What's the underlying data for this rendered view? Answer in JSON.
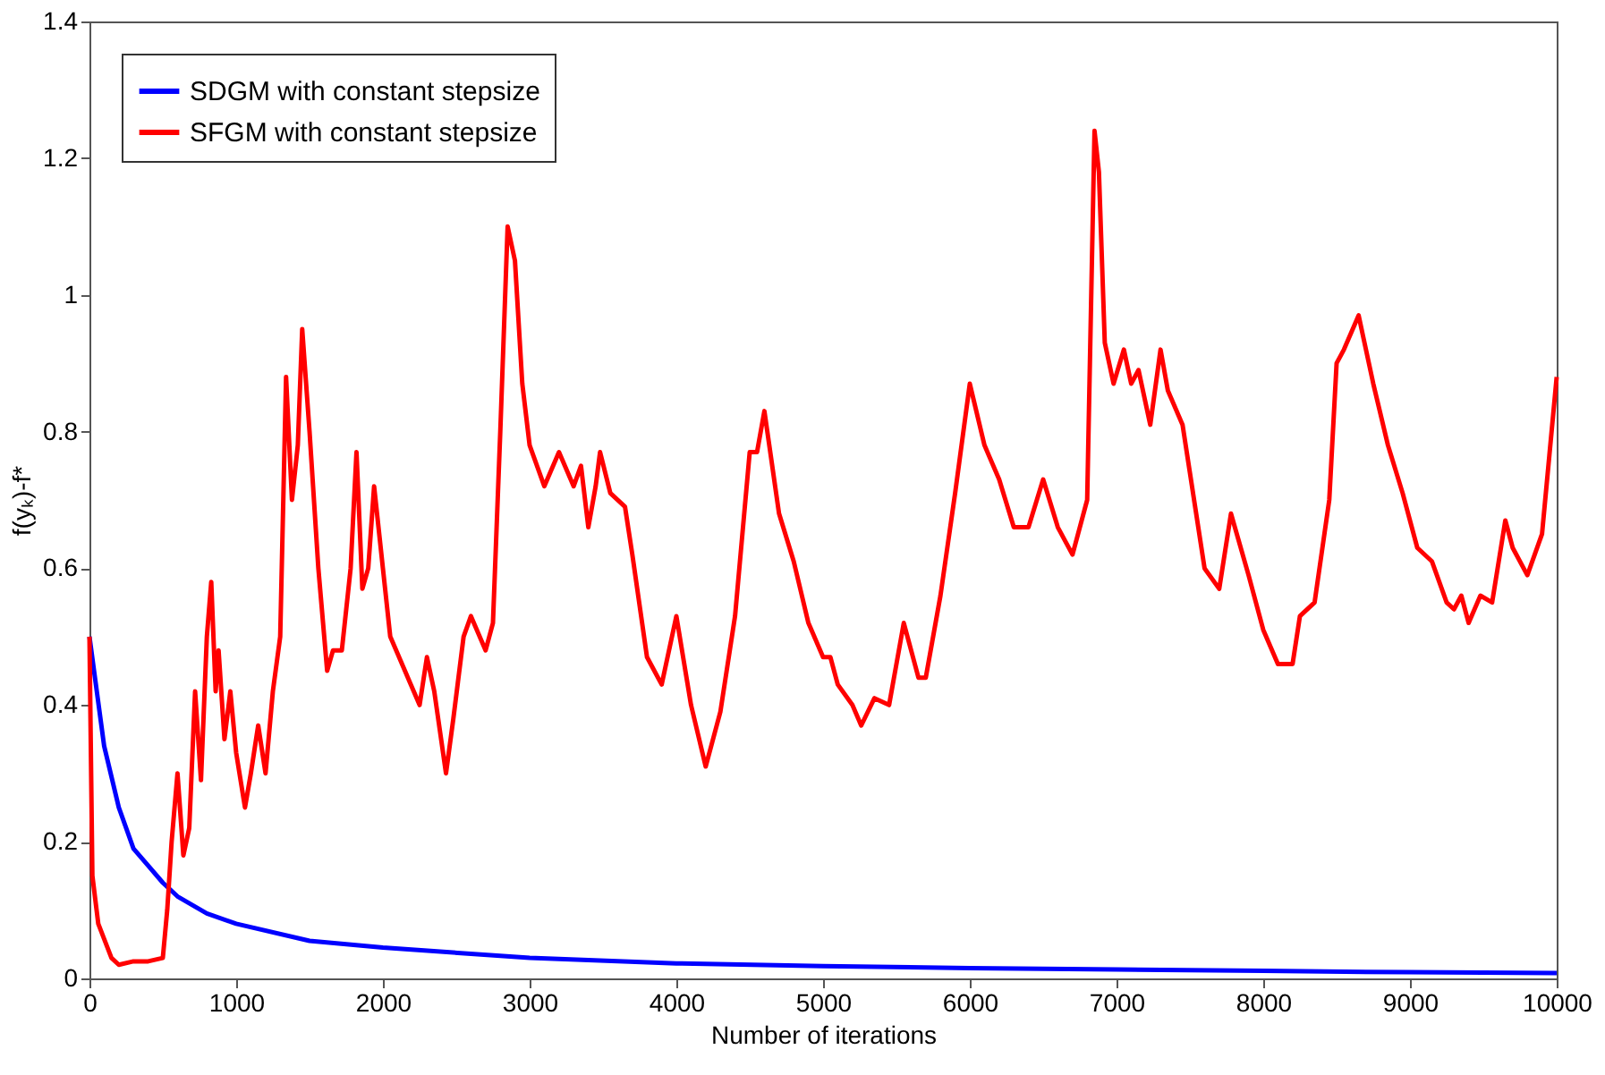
{
  "chart_data": {
    "type": "line",
    "xlabel": "Number of iterations",
    "ylabel": "f(yₖ)-f*",
    "xlim": [
      0,
      10000
    ],
    "xticks": [
      0,
      1000,
      2000,
      3000,
      4000,
      5000,
      6000,
      7000,
      8000,
      9000,
      10000
    ],
    "ylim": [
      0,
      1.4
    ],
    "yticks": [
      0,
      0.2,
      0.4,
      0.6,
      0.8,
      1,
      1.2,
      1.4
    ],
    "grid": false,
    "legend": "top left",
    "marker": "none",
    "line_style": "solid",
    "series": [
      {
        "name": "SDGM with constant stepsize",
        "color": "#0000ff",
        "x": [
          0,
          50,
          100,
          200,
          300,
          400,
          500,
          600,
          800,
          1000,
          1500,
          2000,
          3000,
          4000,
          5000,
          6000,
          7000,
          8000,
          9000,
          10000
        ],
        "values": [
          0.5,
          0.42,
          0.34,
          0.25,
          0.19,
          0.165,
          0.14,
          0.12,
          0.095,
          0.08,
          0.055,
          0.045,
          0.03,
          0.022,
          0.018,
          0.015,
          0.013,
          0.011,
          0.009,
          0.008
        ]
      },
      {
        "name": "SFGM with constant stepsize",
        "color": "#ff0000",
        "x": [
          0,
          20,
          60,
          150,
          200,
          300,
          400,
          500,
          530,
          560,
          600,
          640,
          680,
          720,
          760,
          800,
          830,
          860,
          880,
          920,
          960,
          1000,
          1060,
          1100,
          1150,
          1200,
          1250,
          1300,
          1340,
          1380,
          1420,
          1450,
          1500,
          1560,
          1620,
          1660,
          1720,
          1780,
          1820,
          1860,
          1900,
          1940,
          2000,
          2050,
          2150,
          2250,
          2300,
          2350,
          2430,
          2480,
          2550,
          2600,
          2700,
          2750,
          2800,
          2850,
          2900,
          2950,
          3000,
          3100,
          3200,
          3300,
          3350,
          3400,
          3450,
          3480,
          3550,
          3650,
          3700,
          3800,
          3900,
          4000,
          4100,
          4200,
          4300,
          4400,
          4500,
          4550,
          4600,
          4700,
          4800,
          4900,
          5000,
          5050,
          5100,
          5200,
          5260,
          5350,
          5450,
          5550,
          5650,
          5700,
          5800,
          5900,
          6000,
          6100,
          6200,
          6300,
          6400,
          6500,
          6600,
          6700,
          6800,
          6850,
          6880,
          6920,
          6980,
          7050,
          7100,
          7150,
          7230,
          7300,
          7350,
          7450,
          7500,
          7600,
          7700,
          7780,
          7900,
          8000,
          8100,
          8200,
          8250,
          8350,
          8450,
          8500,
          8550,
          8650,
          8750,
          8850,
          8950,
          9050,
          9150,
          9250,
          9300,
          9350,
          9400,
          9480,
          9560,
          9650,
          9700,
          9800,
          9900,
          10000
        ],
        "values": [
          0.5,
          0.15,
          0.08,
          0.03,
          0.02,
          0.025,
          0.025,
          0.03,
          0.1,
          0.2,
          0.3,
          0.18,
          0.22,
          0.42,
          0.29,
          0.5,
          0.58,
          0.42,
          0.48,
          0.35,
          0.42,
          0.33,
          0.25,
          0.3,
          0.37,
          0.3,
          0.42,
          0.5,
          0.88,
          0.7,
          0.78,
          0.95,
          0.8,
          0.6,
          0.45,
          0.48,
          0.48,
          0.6,
          0.77,
          0.57,
          0.6,
          0.72,
          0.6,
          0.5,
          0.45,
          0.4,
          0.47,
          0.42,
          0.3,
          0.38,
          0.5,
          0.53,
          0.48,
          0.52,
          0.8,
          1.1,
          1.05,
          0.87,
          0.78,
          0.72,
          0.77,
          0.72,
          0.75,
          0.66,
          0.72,
          0.77,
          0.71,
          0.69,
          0.62,
          0.47,
          0.43,
          0.53,
          0.4,
          0.31,
          0.39,
          0.53,
          0.77,
          0.77,
          0.83,
          0.68,
          0.61,
          0.52,
          0.47,
          0.47,
          0.43,
          0.4,
          0.37,
          0.41,
          0.4,
          0.52,
          0.44,
          0.44,
          0.56,
          0.71,
          0.87,
          0.78,
          0.73,
          0.66,
          0.66,
          0.73,
          0.66,
          0.62,
          0.7,
          1.24,
          1.18,
          0.93,
          0.87,
          0.92,
          0.87,
          0.89,
          0.81,
          0.92,
          0.86,
          0.81,
          0.74,
          0.6,
          0.57,
          0.68,
          0.59,
          0.51,
          0.46,
          0.46,
          0.53,
          0.55,
          0.7,
          0.9,
          0.92,
          0.97,
          0.87,
          0.78,
          0.71,
          0.63,
          0.61,
          0.55,
          0.54,
          0.56,
          0.52,
          0.56,
          0.55,
          0.67,
          0.63,
          0.59,
          0.65,
          0.88
        ]
      }
    ]
  }
}
